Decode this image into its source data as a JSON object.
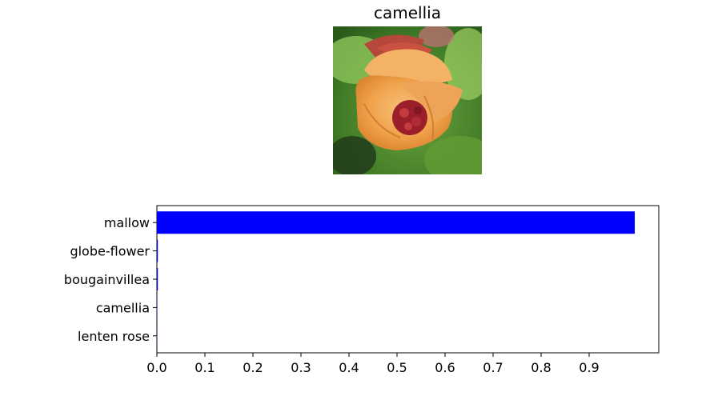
{
  "image_title": "camellia",
  "colors": {
    "bar": "#0000ff",
    "axis": "#000000",
    "background": "#ffffff"
  },
  "chart_data": {
    "type": "bar",
    "orientation": "horizontal",
    "title": "",
    "xlabel": "",
    "ylabel": "",
    "categories": [
      "mallow",
      "globe-flower",
      "bougainvillea",
      "camellia",
      "lenten rose"
    ],
    "values": [
      0.995,
      0.002,
      0.002,
      0.0005,
      0.0003
    ],
    "xticks": [
      "0.0",
      "0.1",
      "0.2",
      "0.3",
      "0.4",
      "0.5",
      "0.6",
      "0.7",
      "0.8",
      "0.9"
    ],
    "xlim": [
      0,
      1.045
    ],
    "grid": false,
    "legend": "none"
  }
}
